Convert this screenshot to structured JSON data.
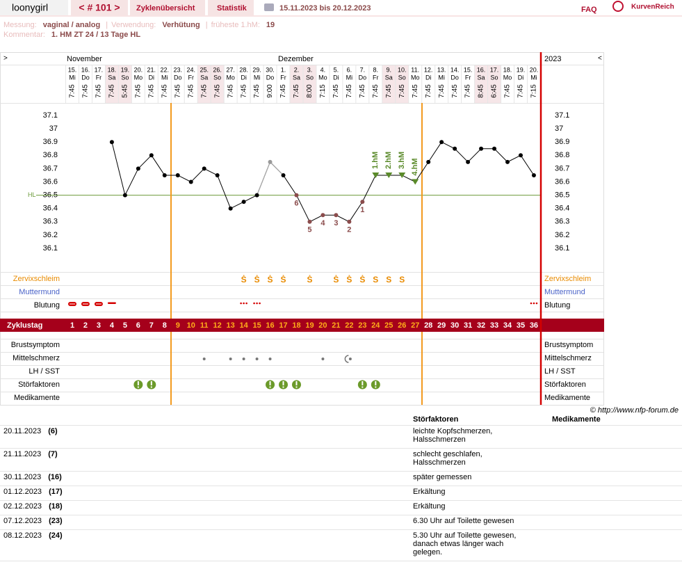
{
  "header": {
    "user": "loonygirl",
    "cycle": "< # 101 >",
    "nav": [
      "Zyklenübersicht",
      "Statistik"
    ],
    "range": "15.11.2023 bis 20.12.2023",
    "faq": "FAQ",
    "logo": "KurvenReich"
  },
  "meta": {
    "separator": "|",
    "items": [
      {
        "label": "Messung:",
        "value": "vaginal / analog"
      },
      {
        "label": "Verwendung:",
        "value": "Verhütung"
      },
      {
        "label": "früheste 1.hM:",
        "value": "19"
      }
    ],
    "comment": {
      "label": "Kommentar:",
      "value": "1. HM ZT 24 / 13 Tage HL"
    }
  },
  "chart_data": {
    "type": "line",
    "nav_prev": ">",
    "nav_next": "<",
    "months": [
      "November",
      "Dezember"
    ],
    "year": "2023",
    "categories": [
      "15.",
      "16.",
      "17.",
      "18.",
      "19.",
      "20.",
      "21.",
      "22.",
      "23.",
      "24.",
      "25.",
      "26.",
      "27.",
      "28.",
      "29.",
      "30.",
      "1.",
      "2.",
      "3.",
      "4.",
      "5.",
      "6.",
      "7.",
      "8.",
      "9.",
      "10.",
      "11.",
      "12.",
      "13.",
      "14.",
      "15.",
      "16.",
      "17.",
      "18.",
      "19.",
      "20."
    ],
    "weekdays": [
      "Mi",
      "Do",
      "Fr",
      "Sa",
      "So",
      "Mo",
      "Di",
      "Mi",
      "Do",
      "Fr",
      "Sa",
      "So",
      "Mo",
      "Di",
      "Mi",
      "Do",
      "Fr",
      "Sa",
      "So",
      "Mo",
      "Di",
      "Mi",
      "Do",
      "Fr",
      "Sa",
      "So",
      "Mo",
      "Di",
      "Mi",
      "Do",
      "Fr",
      "Sa",
      "So",
      "Mo",
      "Di",
      "Mi"
    ],
    "times": [
      "7:45",
      "7:45",
      "7:45",
      "7:45",
      "5:45",
      "7:45",
      "7:45",
      "7:45",
      "7:45",
      "7:45",
      "7:45",
      "7:45",
      "7:45",
      "7:45",
      "7:45",
      "9:00",
      "7:45",
      "7:45",
      "8:00",
      "7:15",
      "7:45",
      "7:45",
      "7:45",
      "7:45",
      "7:45",
      "7:45",
      "7:45",
      "7:45",
      "7:45",
      "7:45",
      "7:45",
      "8:45",
      "6:45",
      "7:45",
      "7:45",
      "7:15"
    ],
    "values": [
      null,
      null,
      null,
      36.9,
      36.5,
      36.7,
      36.8,
      36.65,
      36.65,
      36.6,
      36.7,
      36.65,
      36.4,
      36.45,
      36.5,
      36.75,
      36.65,
      36.5,
      36.3,
      36.35,
      36.35,
      36.3,
      36.45,
      36.65,
      36.65,
      36.65,
      36.6,
      36.75,
      36.9,
      36.85,
      36.75,
      36.85,
      36.85,
      36.75,
      36.8,
      36.65
    ],
    "point_labels": [
      null,
      null,
      null,
      null,
      null,
      null,
      null,
      null,
      null,
      null,
      null,
      null,
      null,
      null,
      null,
      null,
      null,
      "6",
      "5",
      "4",
      "3",
      "2",
      "1",
      null,
      null,
      null,
      null,
      null,
      null,
      null,
      null,
      null,
      null,
      null,
      null,
      null
    ],
    "hm_labels": [
      null,
      null,
      null,
      null,
      null,
      null,
      null,
      null,
      null,
      null,
      null,
      null,
      null,
      null,
      null,
      null,
      null,
      null,
      null,
      null,
      null,
      null,
      null,
      "1.hM",
      "2.hM",
      "3.hM",
      "4.hM",
      null,
      null,
      null,
      null,
      null,
      null,
      null,
      null,
      null
    ],
    "ylim": [
      36.0,
      37.2
    ],
    "yticks": [
      36.1,
      36.2,
      36.3,
      36.4,
      36.5,
      36.6,
      36.7,
      36.8,
      36.9,
      37,
      37.1
    ],
    "hl_value": 36.5,
    "hl_label": "HL",
    "line_color": "#000000",
    "hl_color": "#6b9a3a",
    "rows": {
      "cervical": "Zervixschleim",
      "cervix": "Muttermund",
      "bleeding": "Blutung",
      "cycle_day": "Zyklustag",
      "breast": "Brustsymptom",
      "pain": "Mittelschmerz",
      "lh": "LH / SST",
      "disturb": "Störfaktoren",
      "meds": "Medikamente"
    },
    "cervical": [
      null,
      null,
      null,
      null,
      null,
      null,
      null,
      null,
      null,
      null,
      null,
      null,
      null,
      "Ṡ",
      "Ṡ",
      "Ṡ",
      "Ṡ",
      null,
      "Ṡ",
      null,
      "Ṡ",
      "Ṡ",
      "Ṡ",
      "S",
      "S",
      "S",
      null,
      null,
      null,
      null,
      null,
      null,
      null,
      null,
      null,
      null
    ],
    "cycle_days": [
      1,
      2,
      3,
      4,
      5,
      6,
      7,
      8,
      9,
      10,
      11,
      12,
      13,
      14,
      15,
      16,
      17,
      18,
      19,
      20,
      21,
      22,
      23,
      24,
      25,
      26,
      27,
      28,
      29,
      30,
      31,
      32,
      33,
      34,
      35,
      36
    ]
  },
  "copyright": "© http://www.nfp-forum.de",
  "notes": {
    "headers": [
      "Störfaktoren",
      "Medikamente"
    ],
    "rows": [
      [
        "20.11.2023",
        "(6)",
        "leichte Kopfschmerzen, Halsschmerzen"
      ],
      [
        "21.11.2023",
        "(7)",
        "schlecht geschlafen, Halsschmerzen"
      ],
      [
        "30.11.2023",
        "(16)",
        "später gemessen"
      ],
      [
        "01.12.2023",
        "(17)",
        "Erkältung"
      ],
      [
        "02.12.2023",
        "(18)",
        "Erkältung"
      ],
      [
        "07.12.2023",
        "(23)",
        "6.30 Uhr auf Toilette gewesen"
      ],
      [
        "08.12.2023",
        "(24)",
        "5.30 Uhr auf Toilette gewesen, danach etwas länger wach gelegen."
      ]
    ]
  }
}
